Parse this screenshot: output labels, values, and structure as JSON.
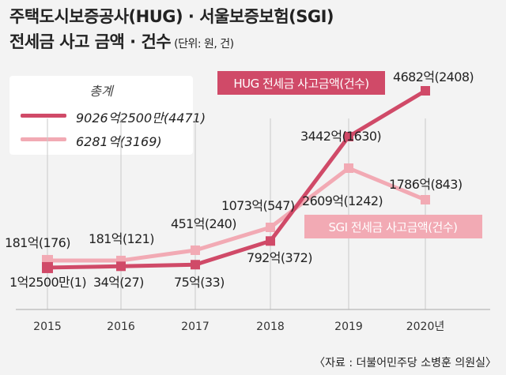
{
  "header": {
    "title_line1": "주택도시보증공사(HUG) · 서울보증보험(SGI)",
    "title_line2": "전세금 사고 금액 · 건수",
    "unit": "(단위: 원, 건)"
  },
  "legend": {
    "title": "총계",
    "items": [
      {
        "label": "9026억2500만(4471)",
        "color": "#d04a68"
      },
      {
        "label": "6281억(3169)",
        "color": "#f2aab4"
      }
    ]
  },
  "source": "〈자료 : 더불어민주당 소병훈 의원실〉",
  "chart_data": {
    "type": "line",
    "x": [
      "2015",
      "2016",
      "2017",
      "2018",
      "2019",
      "2020년"
    ],
    "ylim": [
      0,
      4700
    ],
    "series": [
      {
        "name": "HUG 전세금 사고금액(건수)",
        "color": "#d04a68",
        "values": [
          1.25,
          34,
          75,
          792,
          3442,
          4682
        ],
        "labels": [
          "1억2500만(1)",
          "34억(27)",
          "75억(33)",
          "792억(372)",
          "3442억(1630)",
          "4682억(2408)"
        ]
      },
      {
        "name": "SGI 전세금 사고금액(건수)",
        "color": "#f2aab4",
        "values": [
          181,
          181,
          451,
          1073,
          2609,
          1786
        ],
        "labels": [
          "181억(176)",
          "181억(121)",
          "451억(240)",
          "1073억(547)",
          "2609억(1242)",
          "1786억(843)"
        ]
      }
    ]
  }
}
